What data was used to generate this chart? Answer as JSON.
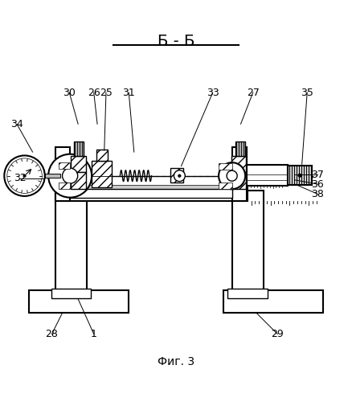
{
  "title": "Б - Б",
  "caption": "Фиг. 3",
  "bg_color": "#ffffff",
  "line_color": "#000000",
  "labels_data": {
    "34": {
      "lpos": [
        0.045,
        0.72
      ],
      "tpos": [
        0.09,
        0.64
      ]
    },
    "30": {
      "lpos": [
        0.195,
        0.81
      ],
      "tpos": [
        0.22,
        0.72
      ]
    },
    "26": {
      "lpos": [
        0.265,
        0.81
      ],
      "tpos": [
        0.275,
        0.72
      ]
    },
    "25": {
      "lpos": [
        0.3,
        0.81
      ],
      "tpos": [
        0.295,
        0.645
      ]
    },
    "31": {
      "lpos": [
        0.365,
        0.81
      ],
      "tpos": [
        0.38,
        0.64
      ]
    },
    "33": {
      "lpos": [
        0.605,
        0.81
      ],
      "tpos": [
        0.515,
        0.6
      ]
    },
    "27": {
      "lpos": [
        0.72,
        0.81
      ],
      "tpos": [
        0.685,
        0.72
      ]
    },
    "35": {
      "lpos": [
        0.875,
        0.81
      ],
      "tpos": [
        0.86,
        0.605
      ]
    },
    "37": {
      "lpos": [
        0.905,
        0.575
      ],
      "tpos": [
        0.84,
        0.575
      ]
    },
    "36": {
      "lpos": [
        0.905,
        0.548
      ],
      "tpos": [
        0.84,
        0.56
      ]
    },
    "38": {
      "lpos": [
        0.905,
        0.52
      ],
      "tpos": [
        0.84,
        0.548
      ]
    },
    "32": {
      "lpos": [
        0.055,
        0.565
      ],
      "tpos": [
        0.12,
        0.565
      ]
    },
    "28": {
      "lpos": [
        0.145,
        0.12
      ],
      "tpos": [
        0.175,
        0.18
      ]
    },
    "1": {
      "lpos": [
        0.265,
        0.12
      ],
      "tpos": [
        0.22,
        0.22
      ]
    },
    "29": {
      "lpos": [
        0.79,
        0.12
      ],
      "tpos": [
        0.73,
        0.18
      ]
    }
  }
}
